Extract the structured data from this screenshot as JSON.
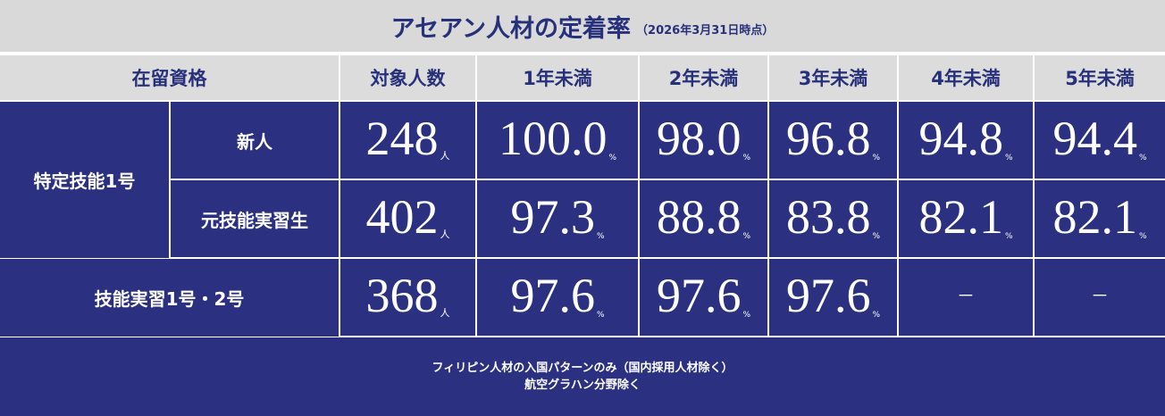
{
  "title": "アセアン人材の定着率",
  "subtitle": "（2026年3月31日時点）",
  "table": {
    "header": [
      "在留資格",
      "対象人数",
      "1年未満",
      "2年未満",
      "3年未満",
      "4年未満",
      "5年未満"
    ],
    "count_unit": "人",
    "rate_unit": "%",
    "sections": [
      {
        "label": "特定技能1号",
        "rows": [
          {
            "label": "新人",
            "count": "248",
            "rates": [
              "100.0",
              "98.0",
              "96.8",
              "94.8",
              "94.4"
            ]
          },
          {
            "label": "元技能実習生",
            "count": "402",
            "rates": [
              "97.3",
              "88.8",
              "83.8",
              "82.1",
              "82.1"
            ]
          }
        ]
      },
      {
        "label": "技能実習1号・2号",
        "rows": [
          {
            "count": "368",
            "rates": [
              "97.6",
              "97.6",
              "97.6",
              "－",
              "－"
            ]
          }
        ]
      }
    ]
  },
  "notes": [
    "フィリピン人材の入国パターンのみ（国内採用人材除く）",
    "航空グラハン分野除く"
  ]
}
